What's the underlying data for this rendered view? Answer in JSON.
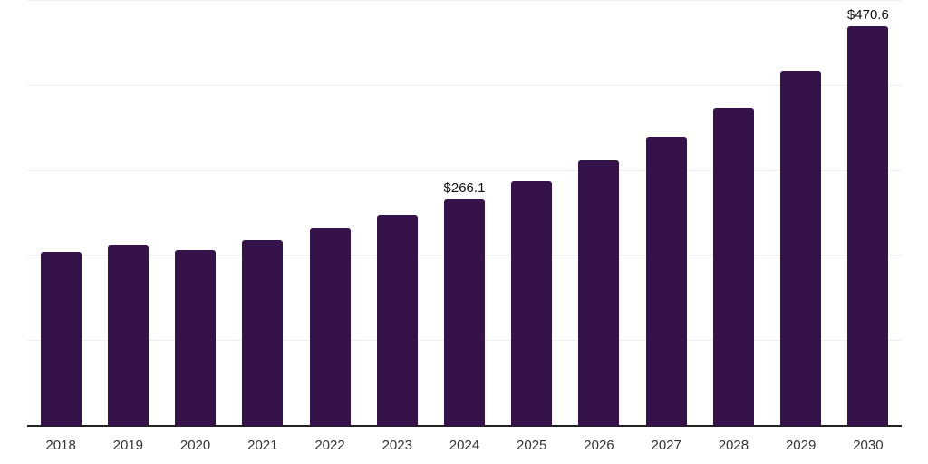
{
  "chart_data": {
    "type": "bar",
    "title": "",
    "xlabel": "",
    "ylabel": "",
    "categories": [
      "2018",
      "2019",
      "2020",
      "2021",
      "2022",
      "2023",
      "2024",
      "2025",
      "2026",
      "2027",
      "2028",
      "2029",
      "2030"
    ],
    "values": [
      204.8,
      213.2,
      206.5,
      218.2,
      232.1,
      248.0,
      266.1,
      287.4,
      312.1,
      340.1,
      373.9,
      417.9,
      470.6
    ],
    "point_labels": [
      "",
      "",
      "",
      "",
      "",
      "",
      "$266.1",
      "",
      "",
      "",
      "",
      "",
      "$470.6"
    ],
    "ylim": [
      0,
      500
    ],
    "gridline_values": [
      100,
      200,
      300,
      400,
      500
    ],
    "grid": "horizontal",
    "y_axis_labels_visible": false,
    "legend": "none",
    "colors": {
      "bar": "#351249",
      "axis_line": "#222222",
      "gridline": "#f0f0f0",
      "data_label": "#111111",
      "tick_label": "#333333",
      "background": "#ffffff"
    }
  }
}
